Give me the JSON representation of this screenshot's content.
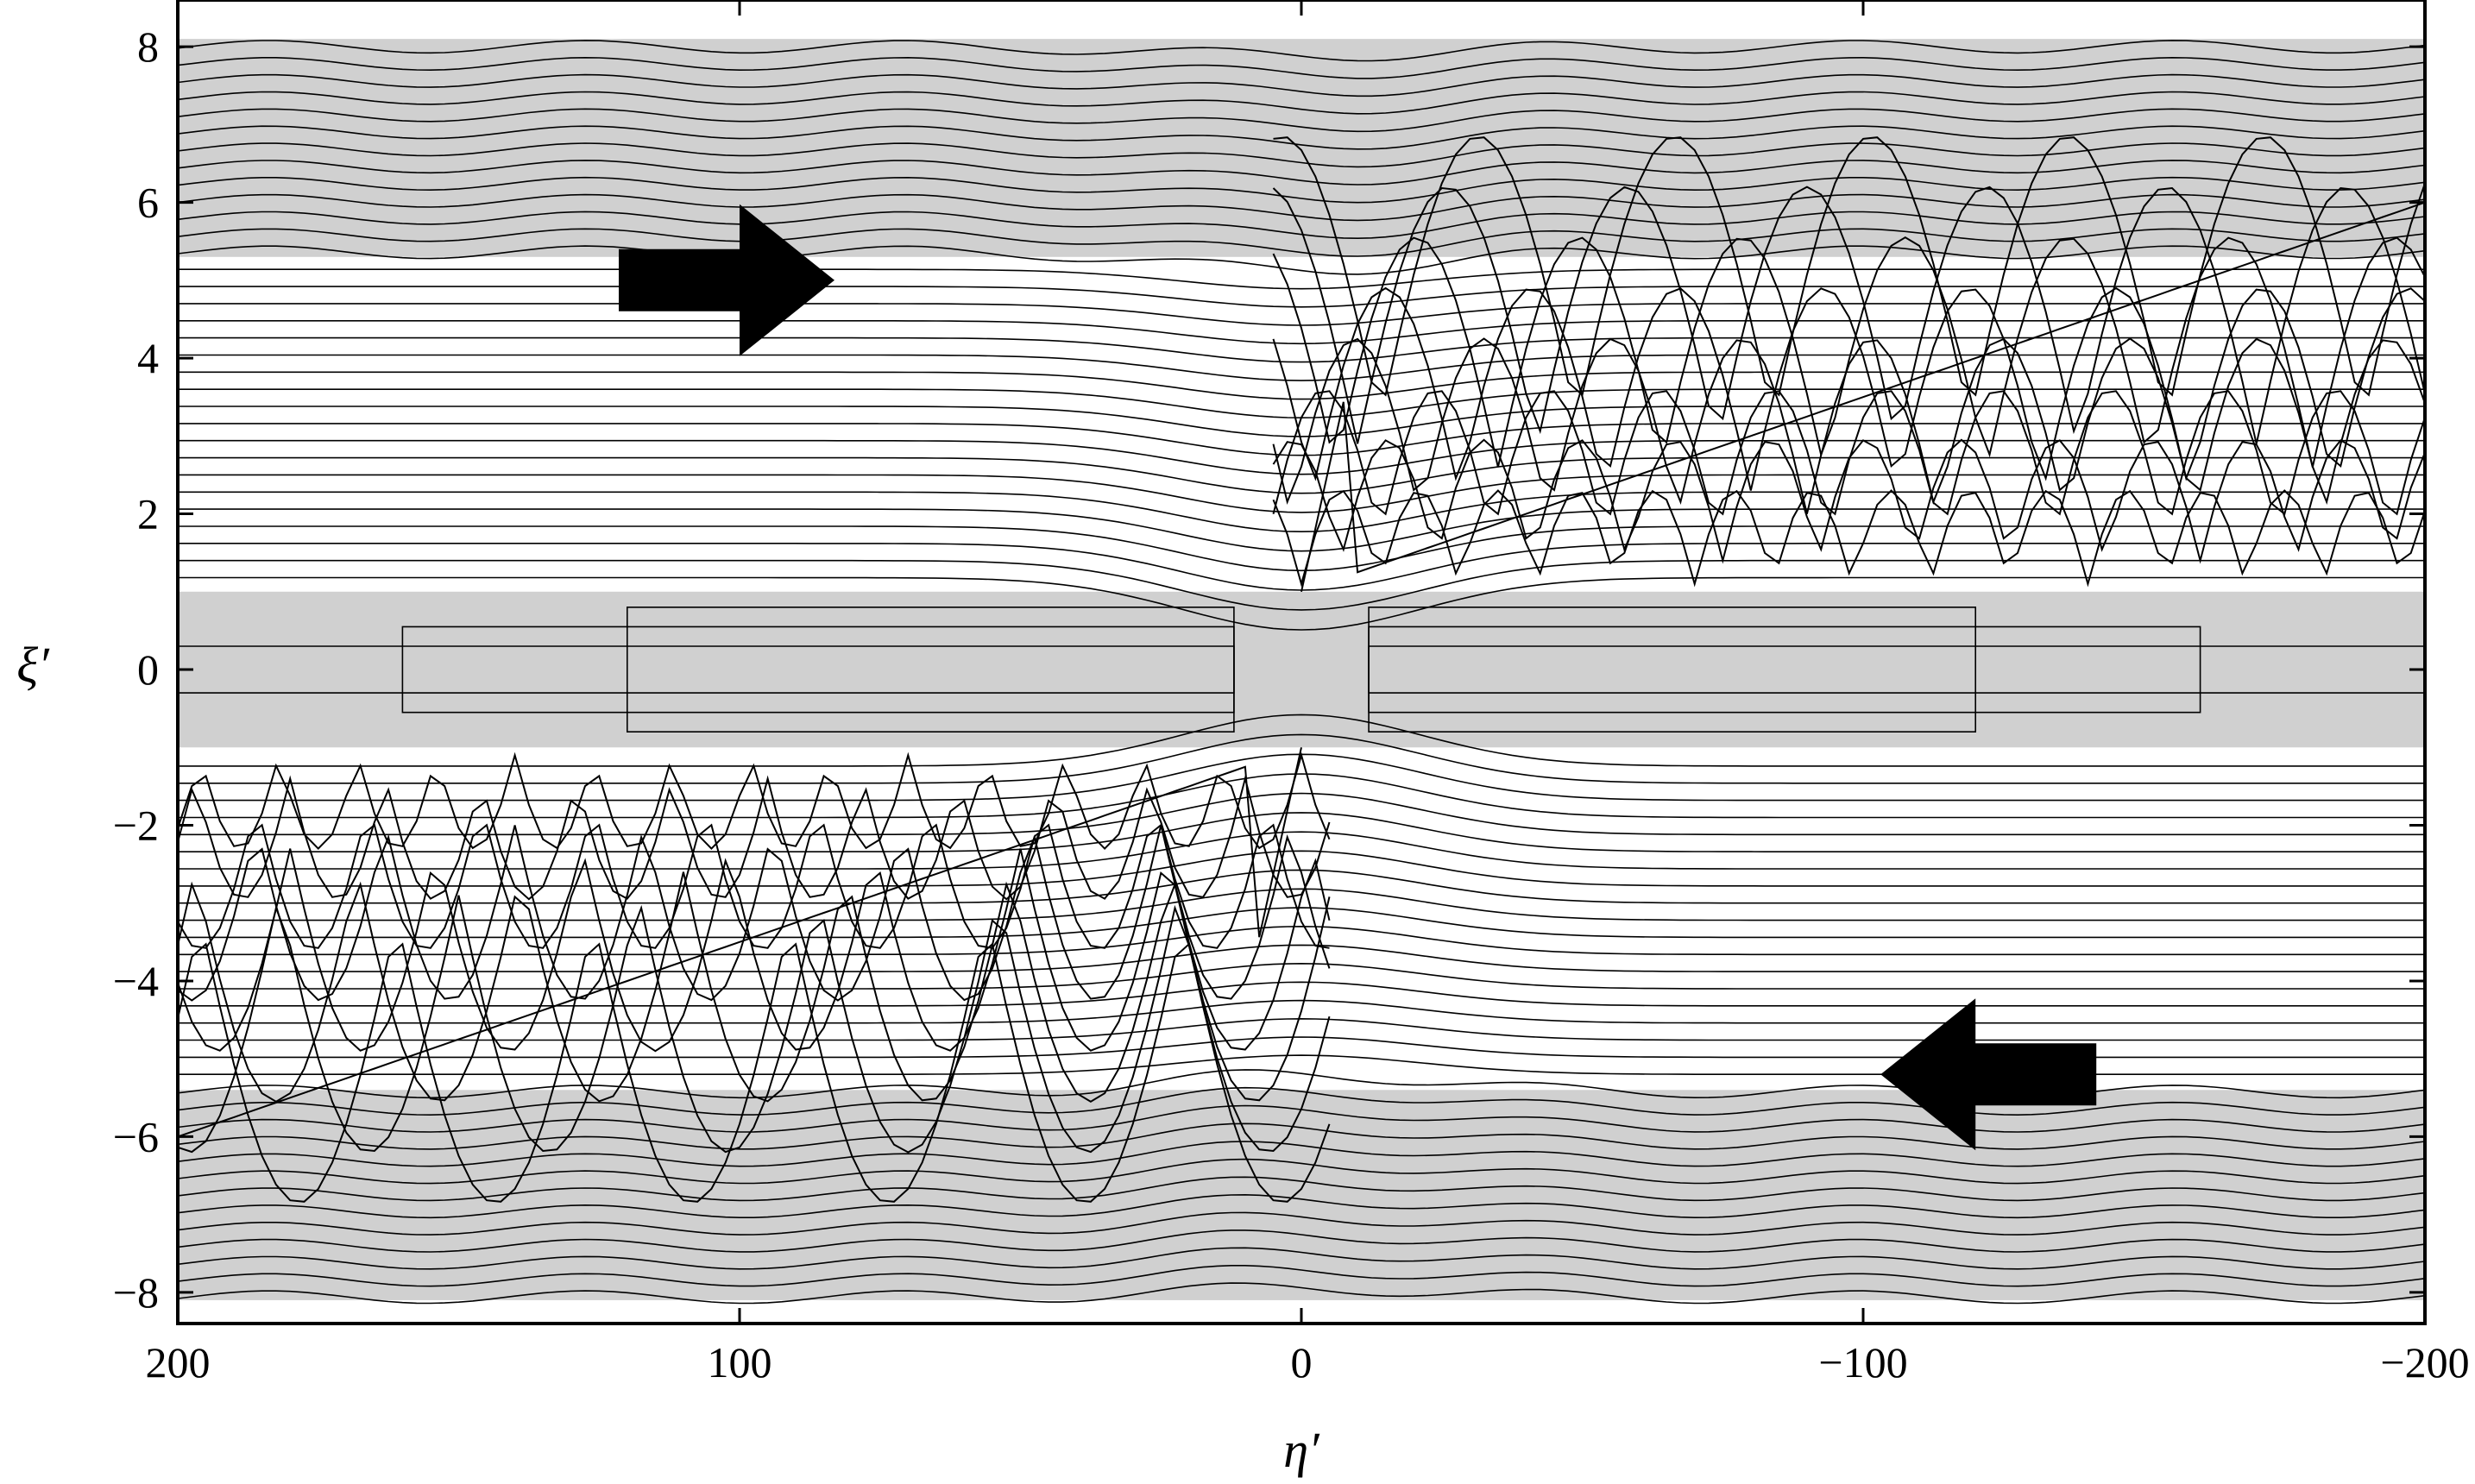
{
  "chart_data": {
    "type": "line",
    "title": "",
    "xlabel": "η′",
    "ylabel": "ξ′",
    "xlim": [
      200,
      -200
    ],
    "ylim": [
      -8.4,
      8.6
    ],
    "x_axis_reversed": true,
    "x_ticks": [
      200,
      100,
      0,
      -100,
      -200
    ],
    "x_tick_labels": [
      "200",
      "100",
      "0",
      "−100",
      "−200"
    ],
    "y_ticks": [
      8,
      6,
      4,
      2,
      0,
      -2,
      -4,
      -6,
      -8
    ],
    "y_tick_labels": [
      "8",
      "6",
      "4",
      "2",
      "0",
      "−2",
      "−4",
      "−6",
      "−8"
    ],
    "grid": false,
    "legend": "none",
    "shaded_regions": [
      {
        "y_range": [
          5.3,
          8.1
        ],
        "x_range": [
          200,
          -200
        ]
      },
      {
        "y_range": [
          -8.1,
          -5.4
        ],
        "x_range": [
          200,
          -200
        ]
      },
      {
        "y_range": [
          -1.0,
          1.0
        ],
        "x_range": [
          200,
          -200
        ]
      }
    ],
    "arrows": [
      {
        "direction": "right",
        "x": 100,
        "y": 5.0
      },
      {
        "direction": "left",
        "x": -120,
        "y": -5.2
      }
    ],
    "colors": {
      "band_fill": "#d0d0d0",
      "line": "#000000",
      "arrow": "#000000"
    }
  }
}
